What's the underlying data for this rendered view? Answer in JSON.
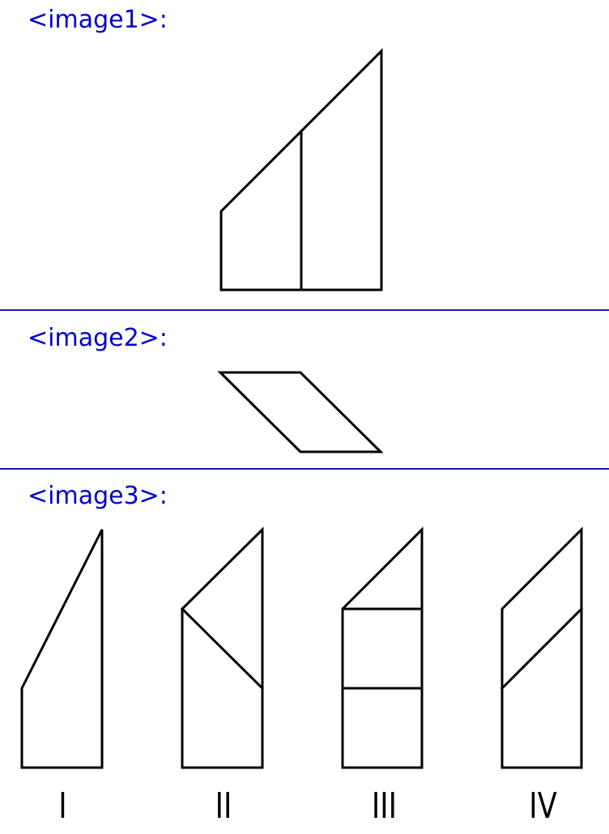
{
  "sections": [
    {
      "label": "<image1>:"
    },
    {
      "label": "<image2>:"
    },
    {
      "label": "<image3>:"
    }
  ],
  "options": [
    {
      "numeral": "I"
    },
    {
      "numeral": "II"
    },
    {
      "numeral": "III"
    },
    {
      "numeral": "IV"
    }
  ],
  "colors": {
    "label": "#0000cc",
    "divider": "#1a1aaa",
    "stroke": "#000000",
    "background": "#ffffff"
  }
}
